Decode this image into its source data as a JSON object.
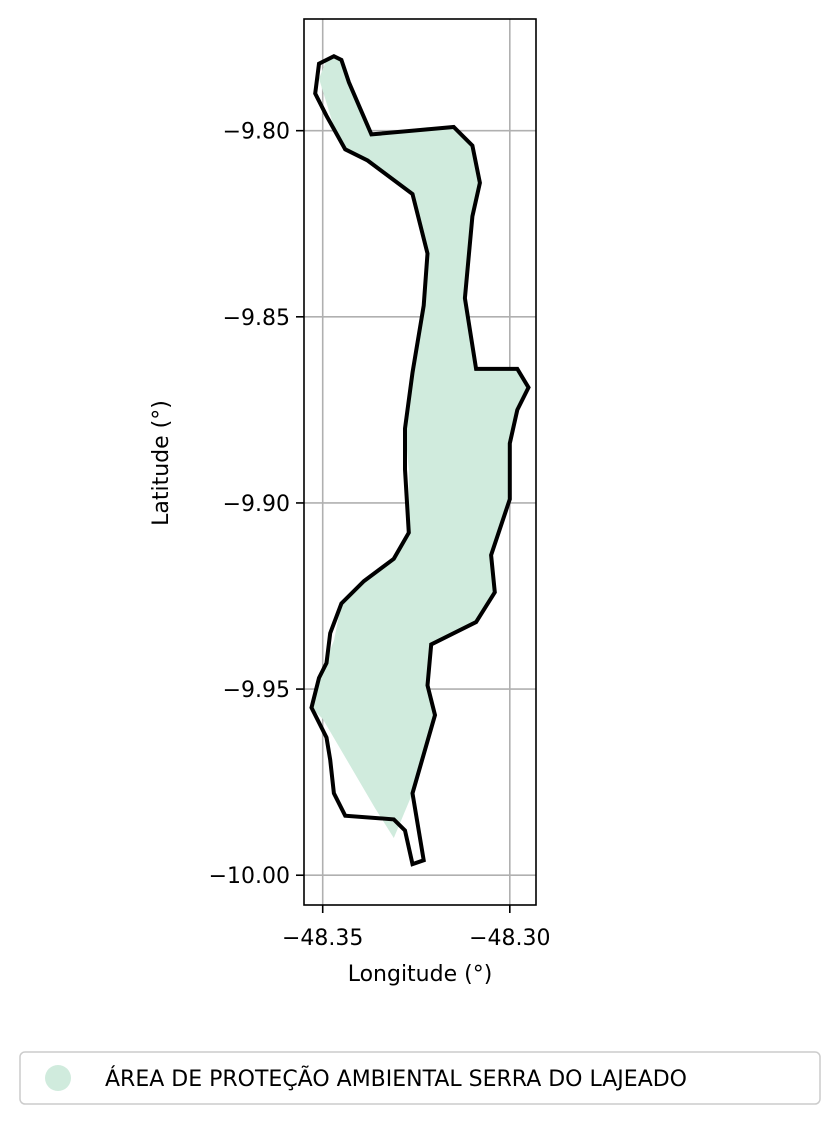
{
  "chart_data": {
    "type": "map",
    "xlabel": "Longitude (°)",
    "ylabel": "Latitude (°)",
    "xlim": [
      -48.355,
      -48.293
    ],
    "ylim": [
      -10.008,
      -9.77
    ],
    "x_ticks": [
      -48.35,
      -48.3
    ],
    "x_tick_labels": [
      "−48.35",
      "−48.30"
    ],
    "y_ticks": [
      -9.8,
      -9.85,
      -9.9,
      -9.95,
      -10.0
    ],
    "y_tick_labels": [
      "−9.80",
      "−9.85",
      "−9.90",
      "−9.95",
      "−10.00"
    ],
    "grid": true,
    "legend": {
      "placement": "bottom-center",
      "entries": [
        "ÁREA DE PROTEÇÃO AMBIENTAL SERRA DO LAJEADO"
      ]
    },
    "colors": {
      "fill": "#d0ebdd",
      "outline": "#000000",
      "grid": "#b0b0b0"
    },
    "fill_polygon": [
      [
        -48.351,
        -9.786
      ],
      [
        -48.349,
        -9.781
      ],
      [
        -48.347,
        -9.78
      ],
      [
        -48.345,
        -9.781
      ],
      [
        -48.343,
        -9.787
      ],
      [
        -48.341,
        -9.793
      ],
      [
        -48.337,
        -9.801
      ],
      [
        -48.322,
        -9.799
      ],
      [
        -48.315,
        -9.799
      ],
      [
        -48.31,
        -9.804
      ],
      [
        -48.308,
        -9.814
      ],
      [
        -48.31,
        -9.823
      ],
      [
        -48.312,
        -9.845
      ],
      [
        -48.309,
        -9.864
      ],
      [
        -48.298,
        -9.864
      ],
      [
        -48.295,
        -9.869
      ],
      [
        -48.298,
        -9.875
      ],
      [
        -48.3,
        -9.884
      ],
      [
        -48.3,
        -9.899
      ],
      [
        -48.305,
        -9.914
      ],
      [
        -48.304,
        -9.924
      ],
      [
        -48.309,
        -9.932
      ],
      [
        -48.321,
        -9.938
      ],
      [
        -48.322,
        -9.949
      ],
      [
        -48.32,
        -9.957
      ],
      [
        -48.323,
        -9.968
      ],
      [
        -48.326,
        -9.978
      ],
      [
        -48.331,
        -9.99
      ],
      [
        -48.336,
        -9.982
      ],
      [
        -48.343,
        -9.97
      ],
      [
        -48.35,
        -9.958
      ],
      [
        -48.353,
        -9.955
      ],
      [
        -48.351,
        -9.947
      ],
      [
        -48.347,
        -9.937
      ],
      [
        -48.345,
        -9.927
      ],
      [
        -48.339,
        -9.921
      ],
      [
        -48.331,
        -9.915
      ],
      [
        -48.327,
        -9.908
      ],
      [
        -48.327,
        -9.891
      ],
      [
        -48.328,
        -9.88
      ],
      [
        -48.326,
        -9.865
      ],
      [
        -48.323,
        -9.847
      ],
      [
        -48.322,
        -9.833
      ],
      [
        -48.326,
        -9.817
      ],
      [
        -48.338,
        -9.808
      ],
      [
        -48.344,
        -9.805
      ],
      [
        -48.347,
        -9.799
      ]
    ],
    "outline_polygon": [
      [
        -48.352,
        -9.79
      ],
      [
        -48.351,
        -9.782
      ],
      [
        -48.347,
        -9.78
      ],
      [
        -48.345,
        -9.781
      ],
      [
        -48.343,
        -9.787
      ],
      [
        -48.34,
        -9.794
      ],
      [
        -48.337,
        -9.801
      ],
      [
        -48.315,
        -9.799
      ],
      [
        -48.31,
        -9.804
      ],
      [
        -48.308,
        -9.814
      ],
      [
        -48.31,
        -9.823
      ],
      [
        -48.312,
        -9.845
      ],
      [
        -48.309,
        -9.864
      ],
      [
        -48.298,
        -9.864
      ],
      [
        -48.295,
        -9.869
      ],
      [
        -48.298,
        -9.875
      ],
      [
        -48.3,
        -9.884
      ],
      [
        -48.3,
        -9.899
      ],
      [
        -48.305,
        -9.914
      ],
      [
        -48.304,
        -9.924
      ],
      [
        -48.309,
        -9.932
      ],
      [
        -48.321,
        -9.938
      ],
      [
        -48.322,
        -9.949
      ],
      [
        -48.32,
        -9.957
      ],
      [
        -48.326,
        -9.978
      ],
      [
        -48.323,
        -9.996
      ],
      [
        -48.326,
        -9.997
      ],
      [
        -48.328,
        -9.988
      ],
      [
        -48.331,
        -9.985
      ],
      [
        -48.344,
        -9.984
      ],
      [
        -48.347,
        -9.978
      ],
      [
        -48.348,
        -9.969
      ],
      [
        -48.349,
        -9.963
      ],
      [
        -48.353,
        -9.955
      ],
      [
        -48.351,
        -9.947
      ],
      [
        -48.349,
        -9.943
      ],
      [
        -48.348,
        -9.935
      ],
      [
        -48.345,
        -9.927
      ],
      [
        -48.339,
        -9.921
      ],
      [
        -48.331,
        -9.915
      ],
      [
        -48.327,
        -9.908
      ],
      [
        -48.328,
        -9.891
      ],
      [
        -48.328,
        -9.88
      ],
      [
        -48.326,
        -9.865
      ],
      [
        -48.323,
        -9.847
      ],
      [
        -48.322,
        -9.833
      ],
      [
        -48.326,
        -9.817
      ],
      [
        -48.338,
        -9.808
      ],
      [
        -48.344,
        -9.805
      ],
      [
        -48.349,
        -9.796
      ]
    ]
  }
}
